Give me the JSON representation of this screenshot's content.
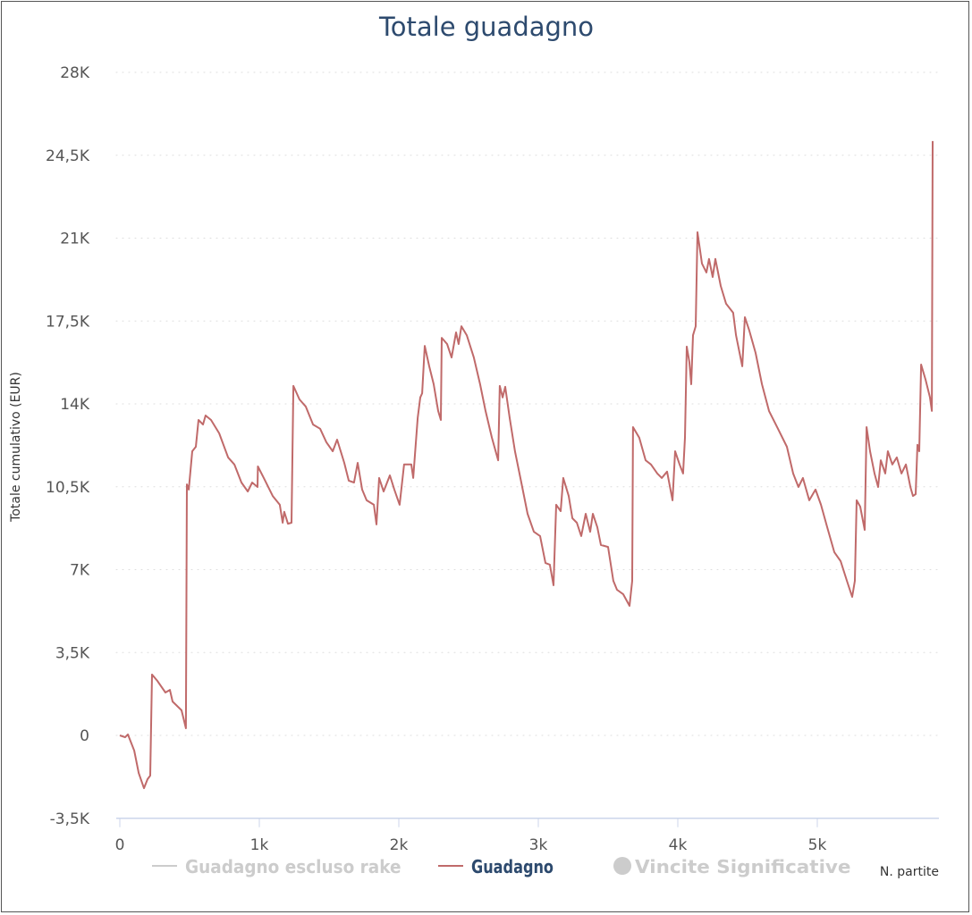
{
  "chart_data": {
    "type": "line",
    "title": "Totale guadagno",
    "xlabel": "N. partite",
    "ylabel": "Totale cumulativo (EUR)",
    "xlim": [
      0,
      5850
    ],
    "ylim": [
      -3500,
      28000
    ],
    "x_ticks": [
      0,
      1000,
      2000,
      3000,
      4000,
      5000
    ],
    "x_tick_labels": [
      "0",
      "1k",
      "2k",
      "3k",
      "4k",
      "5k"
    ],
    "y_ticks": [
      -3500,
      0,
      3500,
      7000,
      10500,
      14000,
      17500,
      21000,
      24500,
      28000
    ],
    "y_tick_labels": [
      "-3,5K",
      "0",
      "3,5K",
      "7K",
      "10,5K",
      "14K",
      "17,5K",
      "21K",
      "24,5K",
      "28K"
    ],
    "grid": "horizontal dotted",
    "legend_placement": "bottom",
    "legend": [
      {
        "name": "Guadagno escluso rake",
        "color": "#cccccc",
        "symbol": "line",
        "hidden": true
      },
      {
        "name": "Guadagno",
        "color": "#c06a6a",
        "symbol": "line",
        "hidden": false
      },
      {
        "name": "Vincite Significative",
        "color": "#cccccc",
        "symbol": "circle",
        "hidden": true
      }
    ],
    "colors": {
      "title": "#2d4a6e",
      "line": "#c06a6a",
      "axis": "#ccd6eb",
      "grid": "#dddddd",
      "text": "#555555"
    },
    "series": [
      {
        "name": "Guadagno",
        "points": [
          [
            0,
            0
          ],
          [
            38,
            -80
          ],
          [
            58,
            40
          ],
          [
            103,
            -640
          ],
          [
            135,
            -1590
          ],
          [
            173,
            -2230
          ],
          [
            199,
            -1850
          ],
          [
            218,
            -1700
          ],
          [
            231,
            2570
          ],
          [
            269,
            2300
          ],
          [
            327,
            1810
          ],
          [
            359,
            1920
          ],
          [
            378,
            1430
          ],
          [
            442,
            1060
          ],
          [
            474,
            300
          ],
          [
            481,
            10600
          ],
          [
            494,
            10380
          ],
          [
            519,
            12000
          ],
          [
            545,
            12190
          ],
          [
            564,
            13320
          ],
          [
            596,
            13130
          ],
          [
            615,
            13510
          ],
          [
            654,
            13320
          ],
          [
            712,
            12760
          ],
          [
            776,
            11740
          ],
          [
            821,
            11440
          ],
          [
            872,
            10680
          ],
          [
            917,
            10300
          ],
          [
            949,
            10680
          ],
          [
            987,
            10490
          ],
          [
            990,
            11360
          ],
          [
            1032,
            10870
          ],
          [
            1096,
            10110
          ],
          [
            1147,
            9740
          ],
          [
            1167,
            8980
          ],
          [
            1179,
            9440
          ],
          [
            1205,
            8940
          ],
          [
            1231,
            8980
          ],
          [
            1244,
            14760
          ],
          [
            1288,
            14190
          ],
          [
            1333,
            13890
          ],
          [
            1385,
            13130
          ],
          [
            1436,
            12950
          ],
          [
            1481,
            12380
          ],
          [
            1526,
            12000
          ],
          [
            1558,
            12490
          ],
          [
            1609,
            11510
          ],
          [
            1641,
            10760
          ],
          [
            1679,
            10680
          ],
          [
            1705,
            11510
          ],
          [
            1737,
            10380
          ],
          [
            1769,
            9930
          ],
          [
            1821,
            9740
          ],
          [
            1840,
            8910
          ],
          [
            1859,
            10870
          ],
          [
            1891,
            10300
          ],
          [
            1936,
            10980
          ],
          [
            1968,
            10380
          ],
          [
            2006,
            9740
          ],
          [
            2038,
            11440
          ],
          [
            2090,
            11440
          ],
          [
            2103,
            10870
          ],
          [
            2135,
            13400
          ],
          [
            2154,
            14270
          ],
          [
            2167,
            14450
          ],
          [
            2186,
            16450
          ],
          [
            2218,
            15590
          ],
          [
            2250,
            14830
          ],
          [
            2282,
            13700
          ],
          [
            2301,
            13320
          ],
          [
            2308,
            16790
          ],
          [
            2346,
            16530
          ],
          [
            2378,
            15960
          ],
          [
            2410,
            17020
          ],
          [
            2429,
            16530
          ],
          [
            2449,
            17280
          ],
          [
            2487,
            16900
          ],
          [
            2538,
            15960
          ],
          [
            2583,
            14830
          ],
          [
            2622,
            13700
          ],
          [
            2667,
            12570
          ],
          [
            2712,
            11620
          ],
          [
            2724,
            14760
          ],
          [
            2744,
            14270
          ],
          [
            2763,
            14720
          ],
          [
            2795,
            13400
          ],
          [
            2833,
            12000
          ],
          [
            2878,
            10680
          ],
          [
            2923,
            9360
          ],
          [
            2968,
            8600
          ],
          [
            3013,
            8420
          ],
          [
            3051,
            7280
          ],
          [
            3083,
            7210
          ],
          [
            3109,
            6340
          ],
          [
            3128,
            9740
          ],
          [
            3160,
            9470
          ],
          [
            3179,
            10870
          ],
          [
            3218,
            10110
          ],
          [
            3244,
            9170
          ],
          [
            3276,
            8980
          ],
          [
            3308,
            8420
          ],
          [
            3340,
            9360
          ],
          [
            3372,
            8600
          ],
          [
            3391,
            9360
          ],
          [
            3423,
            8790
          ],
          [
            3449,
            8040
          ],
          [
            3500,
            7960
          ],
          [
            3538,
            6530
          ],
          [
            3564,
            6150
          ],
          [
            3609,
            5960
          ],
          [
            3654,
            5470
          ],
          [
            3673,
            6530
          ],
          [
            3679,
            13020
          ],
          [
            3724,
            12570
          ],
          [
            3769,
            11620
          ],
          [
            3808,
            11440
          ],
          [
            3853,
            11060
          ],
          [
            3885,
            10870
          ],
          [
            3923,
            11140
          ],
          [
            3962,
            9930
          ],
          [
            3981,
            12000
          ],
          [
            4013,
            11440
          ],
          [
            4038,
            11060
          ],
          [
            4051,
            12570
          ],
          [
            4064,
            16420
          ],
          [
            4083,
            15780
          ],
          [
            4096,
            14830
          ],
          [
            4109,
            16900
          ],
          [
            4128,
            17280
          ],
          [
            4141,
            21250
          ],
          [
            4173,
            19930
          ],
          [
            4205,
            19550
          ],
          [
            4224,
            20120
          ],
          [
            4250,
            19360
          ],
          [
            4269,
            20120
          ],
          [
            4308,
            18980
          ],
          [
            4346,
            18230
          ],
          [
            4397,
            17850
          ],
          [
            4417,
            16900
          ],
          [
            4462,
            15590
          ],
          [
            4481,
            17660
          ],
          [
            4513,
            17090
          ],
          [
            4558,
            16150
          ],
          [
            4603,
            14830
          ],
          [
            4654,
            13700
          ],
          [
            4718,
            12950
          ],
          [
            4782,
            12190
          ],
          [
            4827,
            11060
          ],
          [
            4865,
            10490
          ],
          [
            4897,
            10870
          ],
          [
            4942,
            9930
          ],
          [
            4987,
            10380
          ],
          [
            5026,
            9740
          ],
          [
            5071,
            8790
          ],
          [
            5122,
            7740
          ],
          [
            5167,
            7360
          ],
          [
            5212,
            6530
          ],
          [
            5250,
            5850
          ],
          [
            5269,
            6530
          ],
          [
            5282,
            9930
          ],
          [
            5308,
            9660
          ],
          [
            5340,
            8680
          ],
          [
            5353,
            13020
          ],
          [
            5378,
            12000
          ],
          [
            5410,
            11060
          ],
          [
            5436,
            10490
          ],
          [
            5455,
            11620
          ],
          [
            5487,
            11060
          ],
          [
            5506,
            12000
          ],
          [
            5538,
            11440
          ],
          [
            5570,
            11740
          ],
          [
            5603,
            11060
          ],
          [
            5635,
            11440
          ],
          [
            5667,
            10490
          ],
          [
            5686,
            10110
          ],
          [
            5705,
            10190
          ],
          [
            5718,
            12270
          ],
          [
            5731,
            12000
          ],
          [
            5744,
            15660
          ],
          [
            5776,
            15020
          ],
          [
            5808,
            14270
          ],
          [
            5821,
            13700
          ],
          [
            5827,
            25100
          ]
        ]
      }
    ]
  }
}
